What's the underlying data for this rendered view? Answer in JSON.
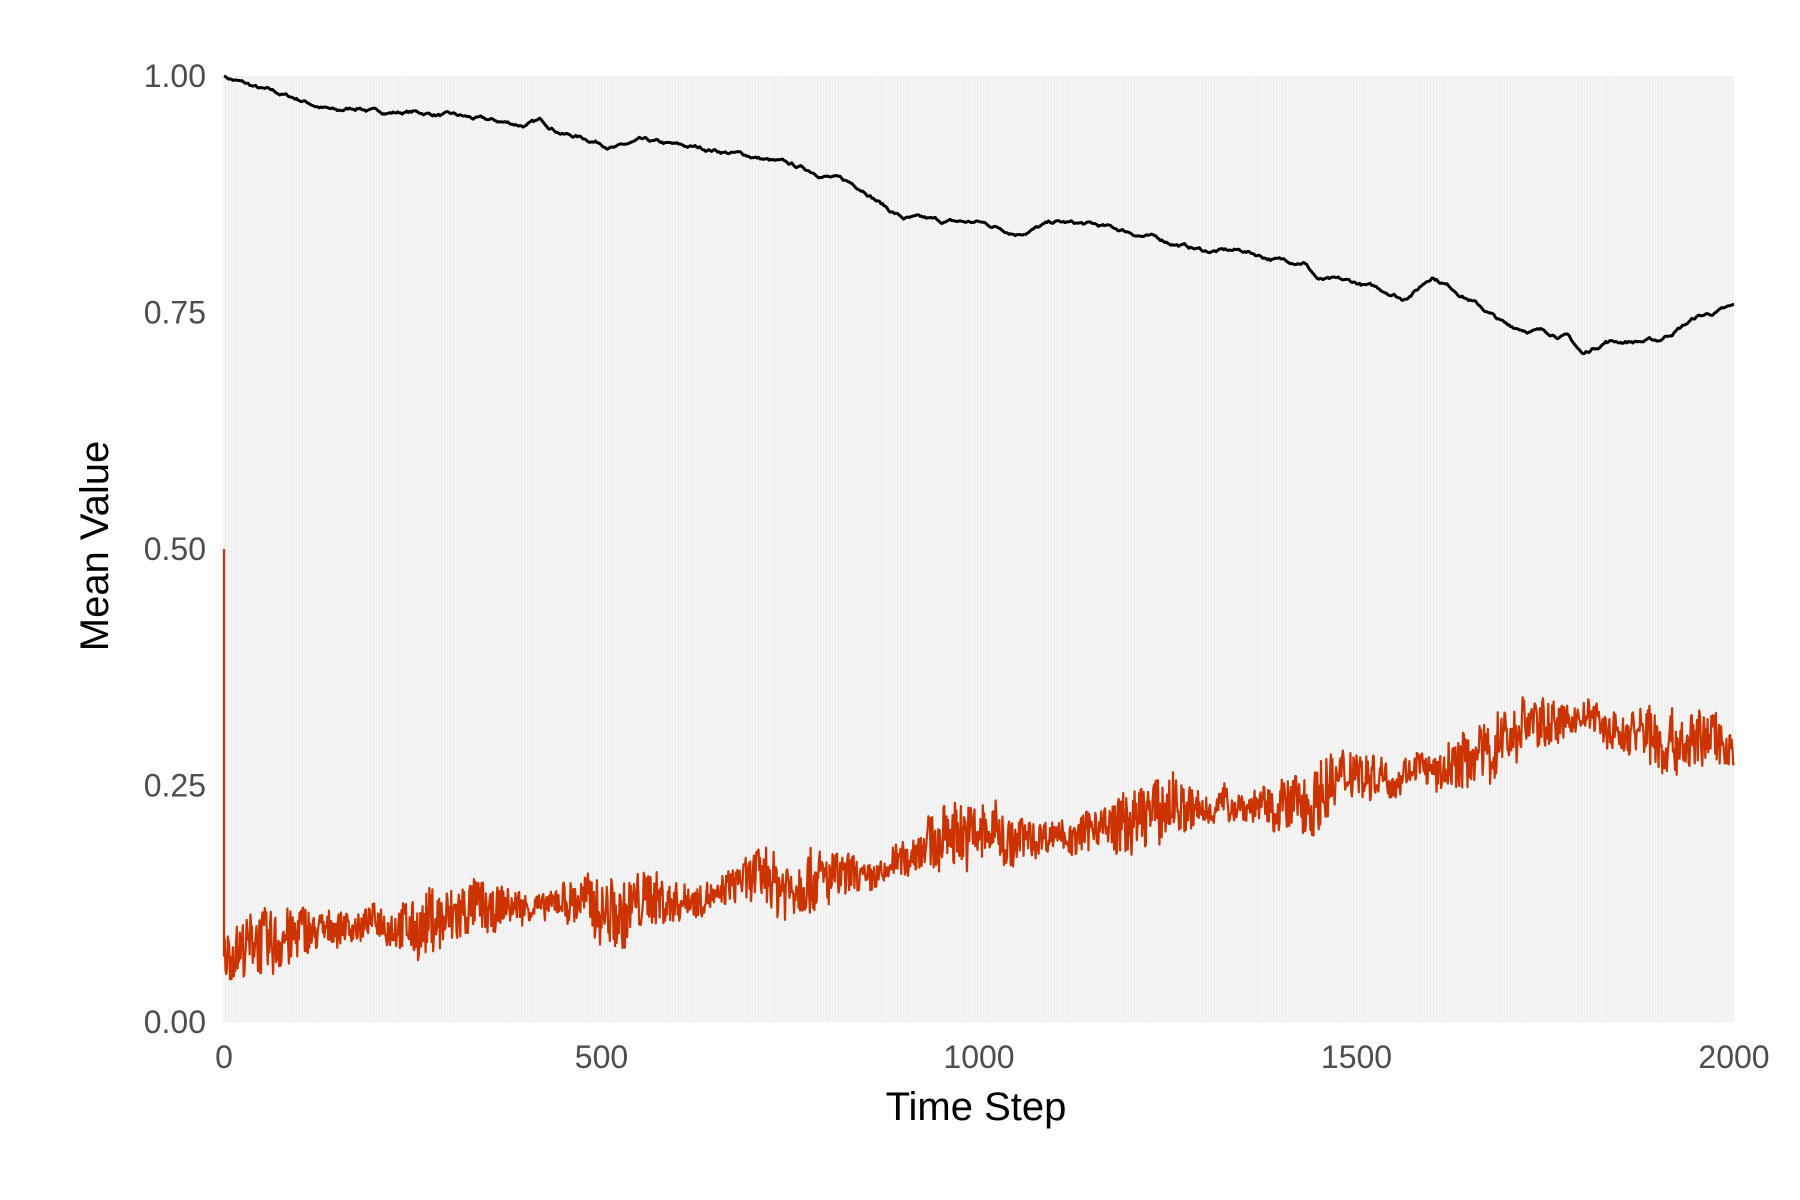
{
  "chart_data": {
    "type": "line",
    "title": "",
    "xlabel": "Time Step",
    "ylabel": "Mean Value",
    "xlim": [
      0,
      2000
    ],
    "ylim": [
      0,
      1
    ],
    "x_ticks": [
      0,
      500,
      1000,
      1500,
      2000
    ],
    "x_tick_labels": [
      "0",
      "500",
      "1000",
      "1500",
      "2000"
    ],
    "y_ticks": [
      0,
      0.25,
      0.5,
      0.75,
      1
    ],
    "y_tick_labels": [
      "0.00",
      "0.25",
      "0.50",
      "0.75",
      "1.00"
    ],
    "grid": "dense light vertical lines at time steps",
    "legend": "none",
    "series": [
      {
        "color": "#000000",
        "style": "thin line",
        "x": [
          0,
          50,
          100,
          150,
          180,
          200,
          250,
          300,
          350,
          400,
          420,
          450,
          500,
          520,
          550,
          600,
          650,
          700,
          750,
          800,
          850,
          880,
          900,
          950,
          1000,
          1050,
          1100,
          1150,
          1200,
          1250,
          1300,
          1350,
          1400,
          1430,
          1450,
          1500,
          1550,
          1560,
          1580,
          1600,
          1650,
          1700,
          1750,
          1780,
          1800,
          1830,
          1850,
          1900,
          1950,
          2000
        ],
        "values": [
          1.0,
          0.985,
          0.975,
          0.962,
          0.967,
          0.962,
          0.962,
          0.958,
          0.952,
          0.948,
          0.952,
          0.94,
          0.93,
          0.925,
          0.93,
          0.925,
          0.922,
          0.915,
          0.905,
          0.895,
          0.88,
          0.86,
          0.85,
          0.845,
          0.845,
          0.835,
          0.845,
          0.842,
          0.835,
          0.825,
          0.815,
          0.815,
          0.805,
          0.805,
          0.785,
          0.78,
          0.77,
          0.765,
          0.775,
          0.79,
          0.765,
          0.735,
          0.73,
          0.725,
          0.705,
          0.72,
          0.72,
          0.72,
          0.745,
          0.755
        ]
      },
      {
        "color": "#cc3300",
        "style": "noisy band",
        "x": [
          0,
          1,
          50,
          100,
          150,
          200,
          250,
          300,
          350,
          400,
          450,
          500,
          550,
          600,
          650,
          700,
          750,
          800,
          850,
          900,
          950,
          1000,
          1050,
          1100,
          1150,
          1200,
          1250,
          1300,
          1350,
          1400,
          1450,
          1500,
          1550,
          1580,
          1600,
          1650,
          1700,
          1750,
          1800,
          1850,
          1900,
          1950,
          2000
        ],
        "values": [
          0.5,
          0.07,
          0.08,
          0.09,
          0.095,
          0.1,
          0.1,
          0.105,
          0.11,
          0.115,
          0.12,
          0.125,
          0.13,
          0.135,
          0.13,
          0.14,
          0.145,
          0.155,
          0.16,
          0.185,
          0.195,
          0.205,
          0.205,
          0.2,
          0.205,
          0.21,
          0.22,
          0.225,
          0.225,
          0.23,
          0.245,
          0.25,
          0.26,
          0.27,
          0.25,
          0.27,
          0.3,
          0.31,
          0.32,
          0.31,
          0.3,
          0.3,
          0.295
        ]
      }
    ]
  }
}
